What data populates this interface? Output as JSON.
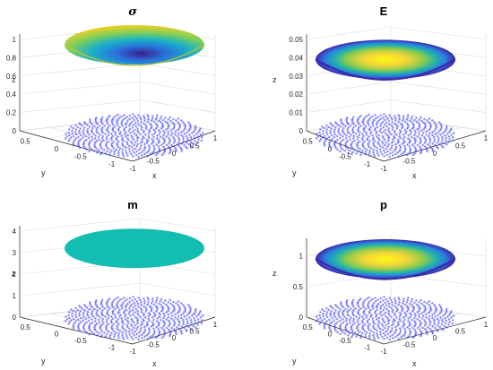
{
  "figure": {
    "panels": [
      {
        "id": "sigma",
        "title": "σ",
        "xlabel": "x",
        "ylabel": "y",
        "zlabel": "z",
        "zlim": [
          0,
          1
        ],
        "zticks": [
          "0",
          "0.2",
          "0.4",
          "0.6",
          "0.8",
          "1"
        ],
        "xticks": [
          "-1",
          "-0.5",
          "0",
          "0.5",
          "1"
        ],
        "yticks": [
          "-1",
          "-0.5",
          "0",
          "0.5"
        ],
        "surface": {
          "shape": "bowl",
          "z_center": 0.78,
          "z_rim": 1.0,
          "colormap": "parula",
          "rim_color": "#e0c22a",
          "center_color": "#3a1f8e"
        }
      },
      {
        "id": "E",
        "title": "E",
        "xlabel": "x",
        "ylabel": "y",
        "zlabel": "z",
        "zlim": [
          0,
          0.05
        ],
        "zticks": [
          "0",
          "0.01",
          "0.02",
          "0.03",
          "0.04",
          "0.05"
        ],
        "xticks": [
          "-1",
          "-0.5",
          "0",
          "0.5",
          "1"
        ],
        "yticks": [
          "-1",
          "-0.5",
          "0",
          "0.5"
        ],
        "surface": {
          "shape": "dome",
          "z_center": 0.042,
          "z_rim": 0.04,
          "colormap": "parula",
          "rim_color": "#3e26a8",
          "center_color": "#f9fb0e"
        }
      },
      {
        "id": "m",
        "title": "m",
        "xlabel": "x",
        "ylabel": "y",
        "zlabel": "z",
        "zlim": [
          0,
          4
        ],
        "zticks": [
          "0",
          "1",
          "2",
          "3",
          "4"
        ],
        "xticks": [
          "-1",
          "-0.5",
          "0",
          "0.5",
          "1"
        ],
        "yticks": [
          "-1",
          "-0.5",
          "0",
          "0.5"
        ],
        "surface": {
          "shape": "flat",
          "z_center": 3.2,
          "z_rim": 3.2,
          "colormap": "flat",
          "rim_color": "#13bdb2",
          "center_color": "#13bdb2"
        }
      },
      {
        "id": "p",
        "title": "p",
        "xlabel": "x",
        "ylabel": "y",
        "zlabel": "z",
        "zlim": [
          0,
          1.2
        ],
        "zticks": [
          "0",
          "0.5",
          "1"
        ],
        "xticks": [
          "-1",
          "-0.5",
          "0",
          "0.5",
          "1"
        ],
        "yticks": [
          "-1",
          "-0.5",
          "0",
          "0.5"
        ],
        "surface": {
          "shape": "dome",
          "z_center": 1.02,
          "z_rim": 0.98,
          "colormap": "parula",
          "rim_color": "#3e26a8",
          "center_color": "#f9fb0e"
        }
      }
    ],
    "node_points": {
      "marker": "*",
      "color": "#3b3bff",
      "domain": "unit disk",
      "z": 0
    }
  },
  "chart_data": [
    {
      "type": "surface",
      "title": "σ",
      "xlabel": "x",
      "ylabel": "y",
      "zlabel": "z",
      "xlim": [
        -1,
        1
      ],
      "ylim": [
        -1,
        1
      ],
      "zlim": [
        0,
        1
      ],
      "surface_z_center": 0.78,
      "surface_z_rim": 1.0
    },
    {
      "type": "surface",
      "title": "E",
      "xlabel": "x",
      "ylabel": "y",
      "zlabel": "z",
      "xlim": [
        -1,
        1
      ],
      "ylim": [
        -1,
        1
      ],
      "zlim": [
        0,
        0.05
      ],
      "surface_z_center": 0.042,
      "surface_z_rim": 0.04
    },
    {
      "type": "surface",
      "title": "m",
      "xlabel": "x",
      "ylabel": "y",
      "zlabel": "z",
      "xlim": [
        -1,
        1
      ],
      "ylim": [
        -1,
        1
      ],
      "zlim": [
        0,
        4
      ],
      "surface_z_center": 3.2,
      "surface_z_rim": 3.2
    },
    {
      "type": "surface",
      "title": "p",
      "xlabel": "x",
      "ylabel": "y",
      "zlabel": "z",
      "xlim": [
        -1,
        1
      ],
      "ylim": [
        -1,
        1
      ],
      "zlim": [
        0,
        1.2
      ],
      "surface_z_center": 1.02,
      "surface_z_rim": 0.98
    }
  ]
}
